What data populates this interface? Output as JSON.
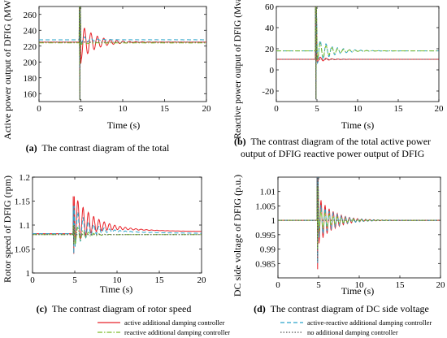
{
  "colors": {
    "active": "#e8232a",
    "active_reactive": "#2aa3c9",
    "reactive": "#7dbb2a",
    "none": "#555555"
  },
  "legend": [
    {
      "key": "active",
      "label": "active additional damping controller",
      "dash": "solid"
    },
    {
      "key": "active_reactive",
      "label": "active-reactive additional damping controller",
      "dash": "dashed"
    },
    {
      "key": "reactive",
      "label": "reactive additional damping controller",
      "dash": "dashdot"
    },
    {
      "key": "none",
      "label": "no additional damping controller",
      "dash": "dotted"
    }
  ],
  "chart_data": [
    {
      "type": "line",
      "ylabel": "Active power output of DFIG (MW)",
      "xlabel": "Time (s)",
      "xlim": [
        0,
        20
      ],
      "ylim": [
        150,
        270
      ],
      "xticks": [
        0,
        5,
        10,
        15,
        20
      ],
      "yticks": [
        160,
        180,
        200,
        220,
        240,
        260
      ],
      "event_time": 4.8,
      "caption_bold": "(a)",
      "caption": "The contrast diagram of the total",
      "series": [
        {
          "key": "active",
          "steady": 225,
          "dip": 198,
          "start": 225,
          "end": 225,
          "amp": 22,
          "decay": 0.55,
          "freq": 1.3,
          "spike": [
            270,
            152
          ]
        },
        {
          "key": "active_reactive",
          "steady": 228,
          "dip": 222,
          "start": 228,
          "end": 228,
          "amp": 5,
          "decay": 0.9,
          "freq": 1.3,
          "spike": [
            270,
            152
          ]
        },
        {
          "key": "reactive",
          "steady": 224,
          "dip": 222,
          "start": 224,
          "end": 224,
          "amp": 2,
          "decay": 1.0,
          "freq": 1.3,
          "spike": [
            270,
            152
          ]
        },
        {
          "key": "none",
          "steady": 225,
          "dip": 225,
          "start": 225,
          "end": 225,
          "amp": 0,
          "decay": 1.0,
          "freq": 1.3,
          "spike": [
            270,
            152
          ]
        }
      ]
    },
    {
      "type": "line",
      "ylabel": "Reactive power output of DFIG (Mvar)",
      "xlabel": "Time (s)",
      "xlim": [
        0,
        20
      ],
      "ylim": [
        -30,
        60
      ],
      "xticks": [
        0,
        5,
        10,
        15,
        20
      ],
      "yticks": [
        -20,
        0,
        20,
        40,
        60
      ],
      "event_time": 4.8,
      "caption_bold": "(b)",
      "caption": "The contrast diagram of the total active power output of DFIG reactive power output of DFIG",
      "series": [
        {
          "key": "active",
          "steady": 10,
          "dip": 10,
          "start": 10,
          "end": 10,
          "amp": 3,
          "decay": 1.0,
          "freq": 1.4,
          "spike": [
            60,
            -28
          ]
        },
        {
          "key": "active_reactive",
          "steady": 18,
          "dip": 30,
          "start": 18,
          "end": 18,
          "amp": 12,
          "decay": 0.55,
          "freq": 1.4,
          "spike": [
            60,
            -28
          ]
        },
        {
          "key": "reactive",
          "steady": 18,
          "dip": 26,
          "start": 18,
          "end": 18,
          "amp": 9,
          "decay": 0.6,
          "freq": 1.4,
          "spike": [
            60,
            -28
          ]
        },
        {
          "key": "none",
          "steady": 10,
          "dip": 10,
          "start": 10,
          "end": 10,
          "amp": 0,
          "decay": 1.0,
          "freq": 1.4,
          "spike": [
            60,
            -28
          ]
        }
      ]
    },
    {
      "type": "line",
      "ylabel": "Rotor speed of DFIG (rpm)",
      "xlabel": "Time (s)",
      "xlim": [
        0,
        20
      ],
      "ylim": [
        1,
        1.2
      ],
      "xticks": [
        0,
        5,
        10,
        15,
        20
      ],
      "yticks": [
        1,
        1.05,
        1.1,
        1.15,
        1.2
      ],
      "ytick_labels": [
        "1",
        "1.05",
        "1.1",
        "1.15",
        "1.2"
      ],
      "event_time": 4.8,
      "caption_bold": "(c)",
      "caption": "The contrast diagram of rotor speed",
      "series": [
        {
          "key": "active",
          "steady": 1.082,
          "dip": 1.11,
          "start": 1.082,
          "end": 1.085,
          "amp": 0.05,
          "decay": 0.5,
          "freq": 1.6,
          "spike": [
            1.16,
            1.04
          ],
          "drift": true
        },
        {
          "key": "active_reactive",
          "steady": 1.082,
          "dip": 1.095,
          "start": 1.082,
          "end": 1.082,
          "amp": 0.04,
          "decay": 0.6,
          "freq": 1.6,
          "spike": [
            1.14,
            1.04
          ],
          "drift": true
        },
        {
          "key": "reactive",
          "steady": 1.08,
          "dip": 1.08,
          "start": 1.08,
          "end": 1.08,
          "amp": 0.02,
          "decay": 0.9,
          "freq": 1.6,
          "spike": [
            1.1,
            1.06
          ]
        },
        {
          "key": "none",
          "steady": 1.08,
          "dip": 1.08,
          "start": 1.08,
          "end": 1.08,
          "amp": 0.0,
          "decay": 1.0,
          "freq": 1.6,
          "spike": [
            1.1,
            1.06
          ]
        }
      ]
    },
    {
      "type": "line",
      "ylabel": "DC side voltage of DFIG (p.u.)",
      "xlabel": "Time (s)",
      "xlim": [
        0,
        20
      ],
      "ylim": [
        0.98,
        1.015
      ],
      "xticks": [
        0,
        5,
        10,
        15,
        20
      ],
      "yticks": [
        0.985,
        0.99,
        0.995,
        1,
        1.005,
        1.01
      ],
      "ytick_labels": [
        "0.985",
        "0.99",
        "0.995",
        "1",
        "1.005",
        "1.01"
      ],
      "event_time": 4.8,
      "caption_bold": "(d)",
      "caption": "The contrast diagram of DC side voltage",
      "series": [
        {
          "key": "active",
          "steady": 1,
          "dip": 1,
          "start": 1,
          "end": 1,
          "amp": 0.008,
          "decay": 0.55,
          "freq": 2.0,
          "spike": [
            1.015,
            0.983
          ]
        },
        {
          "key": "active_reactive",
          "steady": 1,
          "dip": 1,
          "start": 1,
          "end": 1,
          "amp": 0.006,
          "decay": 0.5,
          "freq": 2.0,
          "spike": [
            1.015,
            0.985
          ]
        },
        {
          "key": "reactive",
          "steady": 1,
          "dip": 1,
          "start": 1,
          "end": 1,
          "amp": 0.004,
          "decay": 0.55,
          "freq": 2.0,
          "spike": [
            1.012,
            0.99
          ]
        },
        {
          "key": "none",
          "steady": 1,
          "dip": 1,
          "start": 1,
          "end": 1,
          "amp": 0.0,
          "decay": 1.0,
          "freq": 2.0,
          "spike": [
            1.015,
            0.986
          ]
        }
      ]
    }
  ]
}
